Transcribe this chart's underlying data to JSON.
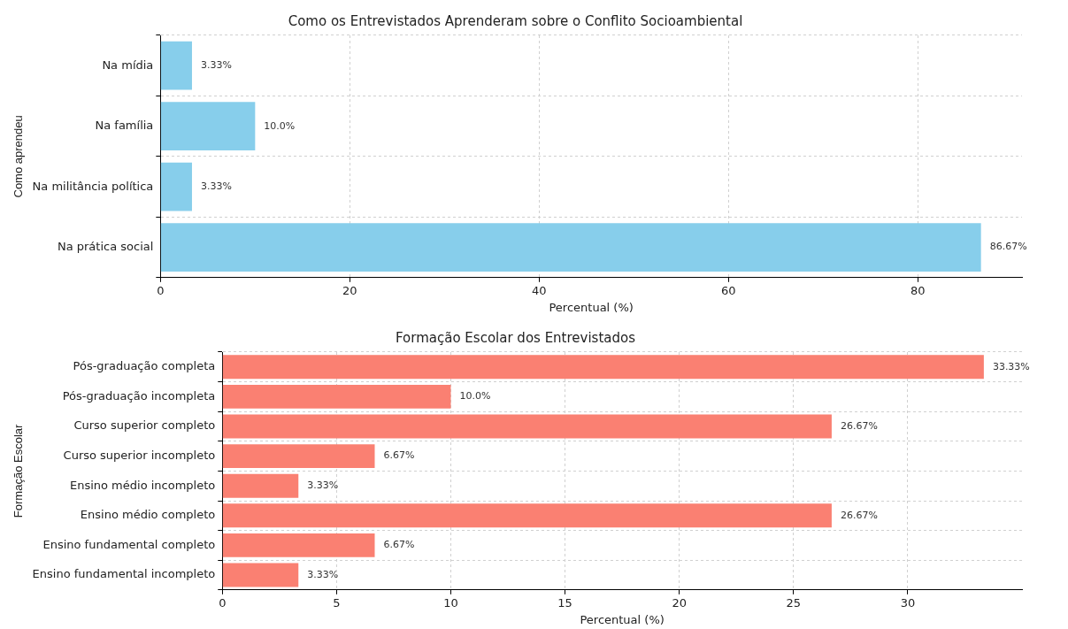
{
  "chart_data": [
    {
      "type": "bar",
      "orientation": "horizontal",
      "title": "Como os Entrevistados Aprenderam sobre o Conflito Socioambiental",
      "xlabel": "Percentual (%)",
      "ylabel": "Como aprendeu",
      "categories": [
        "Na mídia",
        "Na família",
        "Na militância política",
        "Na prática social"
      ],
      "values": [
        3.33,
        10.0,
        3.33,
        86.67
      ],
      "color": "#87ceeb",
      "value_labels": [
        "3.33%",
        "10.0%",
        "3.33%",
        "86.67%"
      ],
      "xlim": [
        0,
        91
      ],
      "xticks": [
        0,
        20,
        40,
        60,
        80
      ],
      "grid": true
    },
    {
      "type": "bar",
      "orientation": "horizontal",
      "title": "Formação Escolar dos Entrevistados",
      "xlabel": "Percentual (%)",
      "ylabel": "Formação Escolar",
      "categories": [
        "Pós-graduação completa",
        "Pós-graduação incompleta",
        "Curso superior completo",
        "Curso superior incompleto",
        "Ensino médio incompleto",
        "Ensino médio completo",
        "Ensino fundamental completo",
        "Ensino fundamental incompleto"
      ],
      "values": [
        33.33,
        10.0,
        26.67,
        6.67,
        3.33,
        26.67,
        6.67,
        3.33
      ],
      "color": "#fa8072",
      "value_labels": [
        "33.33%",
        "10.0%",
        "26.67%",
        "6.67%",
        "3.33%",
        "26.67%",
        "6.67%",
        "3.33%"
      ],
      "xlim": [
        0,
        35
      ],
      "xticks": [
        0,
        5,
        10,
        15,
        20,
        25,
        30
      ],
      "grid": true
    }
  ]
}
